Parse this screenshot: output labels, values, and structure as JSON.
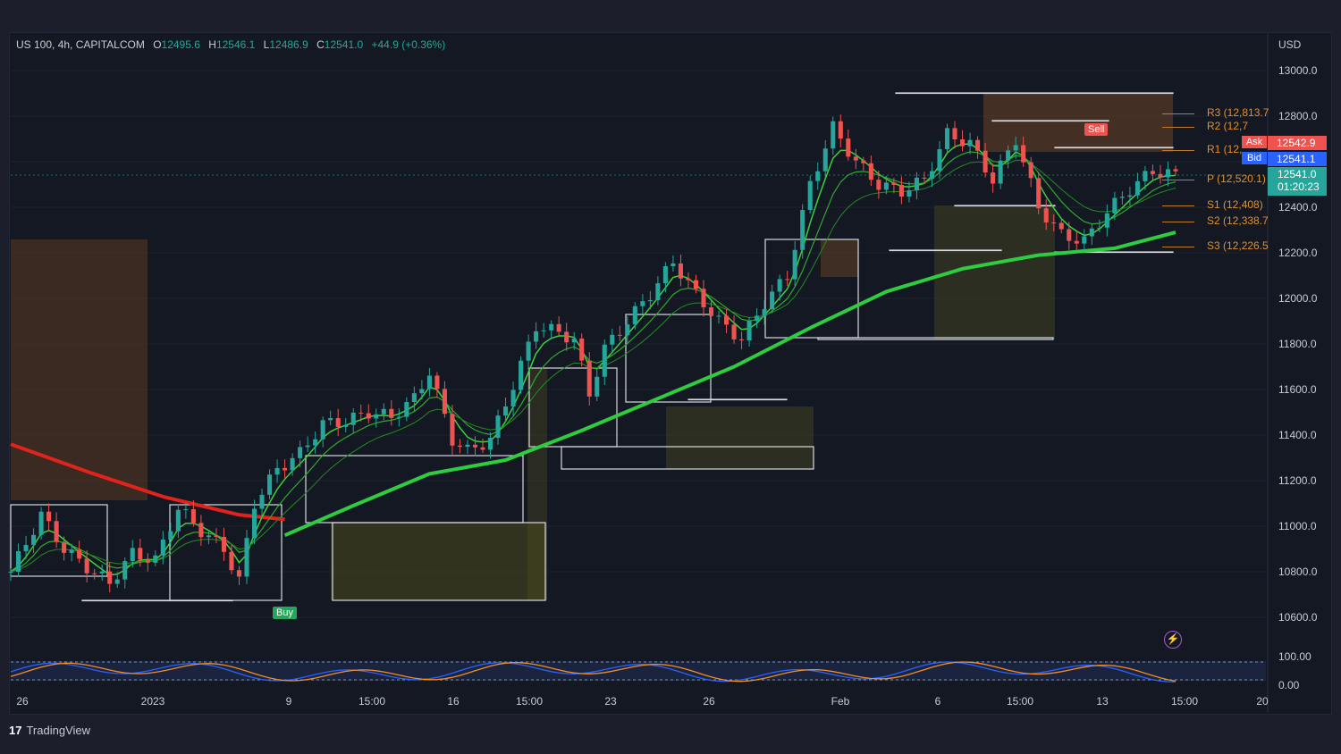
{
  "header": {
    "symbol": "US 100, 4h, CAPITALCOM",
    "o_label": "O",
    "o_value": "12495.6",
    "h_label": "H",
    "h_value": "12546.1",
    "l_label": "L",
    "l_value": "12486.9",
    "c_label": "C",
    "c_value": "12541.0",
    "change": "+44.9 (+0.36%)"
  },
  "currency": "USD",
  "signals": {
    "buy": "Buy",
    "sell": "Sell"
  },
  "pivots": [
    {
      "label": "R3 (12,813.7",
      "value": 12813.7
    },
    {
      "label": "R2 (12,7",
      "value": 12754
    },
    {
      "label": "R1 (12,",
      "value": 12650
    },
    {
      "label": "P (12,520.1)",
      "value": 12520.1
    },
    {
      "label": "S1 (12,408)",
      "value": 12408
    },
    {
      "label": "S2 (12,338.7",
      "value": 12338.7
    },
    {
      "label": "S3 (12,226.5",
      "value": 12226.5
    }
  ],
  "quote": {
    "ask_label": "Ask",
    "ask": "12542.9",
    "bid_label": "Bid",
    "bid": "12541.1",
    "last": "12541.0",
    "countdown": "01:20:23"
  },
  "colors": {
    "up": "#26a69a",
    "down": "#ef5350",
    "ma_green": "#2ecc40",
    "ma_red": "#e0231b",
    "pivot": "#e0902e",
    "bg": "#141823"
  },
  "oscillator": {
    "ticks": [
      "100.00",
      "0.00"
    ]
  },
  "brand": "TradingView",
  "chart_data": {
    "type": "candlestick",
    "title": "US 100, 4h, CAPITALCOM",
    "ylim": [
      10500,
      13100
    ],
    "y_ticks": [
      13000,
      12800,
      12600,
      12400,
      12200,
      12000,
      11800,
      11600,
      11400,
      11200,
      11000,
      10800,
      10600
    ],
    "y_tick_labels": [
      "13000.0",
      "12800.0",
      "12600.0",
      "12400.0",
      "12200.0",
      "12000.0",
      "11800.0",
      "11600.0",
      "11400.0",
      "11200.0",
      "11000.0",
      "10800.0",
      "10600.0"
    ],
    "x_ticks": [
      "26",
      "2023",
      "9",
      "15:00",
      "16",
      "15:00",
      "23",
      "26",
      "Feb",
      "6",
      "15:00",
      "13",
      "15:00",
      "20"
    ],
    "close_path": [
      [
        0,
        10800
      ],
      [
        4,
        11050
      ],
      [
        7,
        10900
      ],
      [
        10,
        10820
      ],
      [
        13,
        10750
      ],
      [
        16,
        10880
      ],
      [
        19,
        10850
      ],
      [
        22,
        11080
      ],
      [
        25,
        10980
      ],
      [
        28,
        10900
      ],
      [
        30,
        10760
      ],
      [
        32,
        11100
      ],
      [
        35,
        11250
      ],
      [
        38,
        11320
      ],
      [
        41,
        11450
      ],
      [
        44,
        11460
      ],
      [
        47,
        11500
      ],
      [
        50,
        11480
      ],
      [
        53,
        11560
      ],
      [
        55,
        11680
      ],
      [
        58,
        11380
      ],
      [
        60,
        11330
      ],
      [
        63,
        11380
      ],
      [
        66,
        11620
      ],
      [
        69,
        11880
      ],
      [
        72,
        11850
      ],
      [
        74,
        11820
      ],
      [
        76,
        11580
      ],
      [
        78,
        11780
      ],
      [
        81,
        11900
      ],
      [
        84,
        12020
      ],
      [
        87,
        12160
      ],
      [
        90,
        12020
      ],
      [
        93,
        11900
      ],
      [
        96,
        11820
      ],
      [
        99,
        11980
      ],
      [
        102,
        12100
      ],
      [
        105,
        12500
      ],
      [
        108,
        12750
      ],
      [
        111,
        12600
      ],
      [
        114,
        12500
      ],
      [
        117,
        12470
      ],
      [
        120,
        12520
      ],
      [
        123,
        12720
      ],
      [
        126,
        12680
      ],
      [
        129,
        12520
      ],
      [
        132,
        12700
      ],
      [
        135,
        12400
      ],
      [
        138,
        12280
      ],
      [
        141,
        12250
      ],
      [
        144,
        12380
      ],
      [
        147,
        12480
      ],
      [
        150,
        12560
      ],
      [
        153,
        12541
      ]
    ],
    "series": [
      {
        "type": "line",
        "color": "#2ecc40",
        "points": [
          [
            36,
            10960
          ],
          [
            45,
            11090
          ],
          [
            55,
            11230
          ],
          [
            65,
            11290
          ],
          [
            75,
            11420
          ],
          [
            85,
            11560
          ],
          [
            95,
            11700
          ],
          [
            105,
            11870
          ],
          [
            115,
            12030
          ],
          [
            125,
            12130
          ],
          [
            135,
            12190
          ],
          [
            145,
            12220
          ],
          [
            153,
            12290
          ]
        ]
      },
      {
        "type": "line",
        "color": "#e0231b",
        "points": [
          [
            0,
            11360
          ],
          [
            10,
            11240
          ],
          [
            20,
            11130
          ],
          [
            30,
            11050
          ],
          [
            36,
            11030
          ]
        ]
      }
    ]
  }
}
